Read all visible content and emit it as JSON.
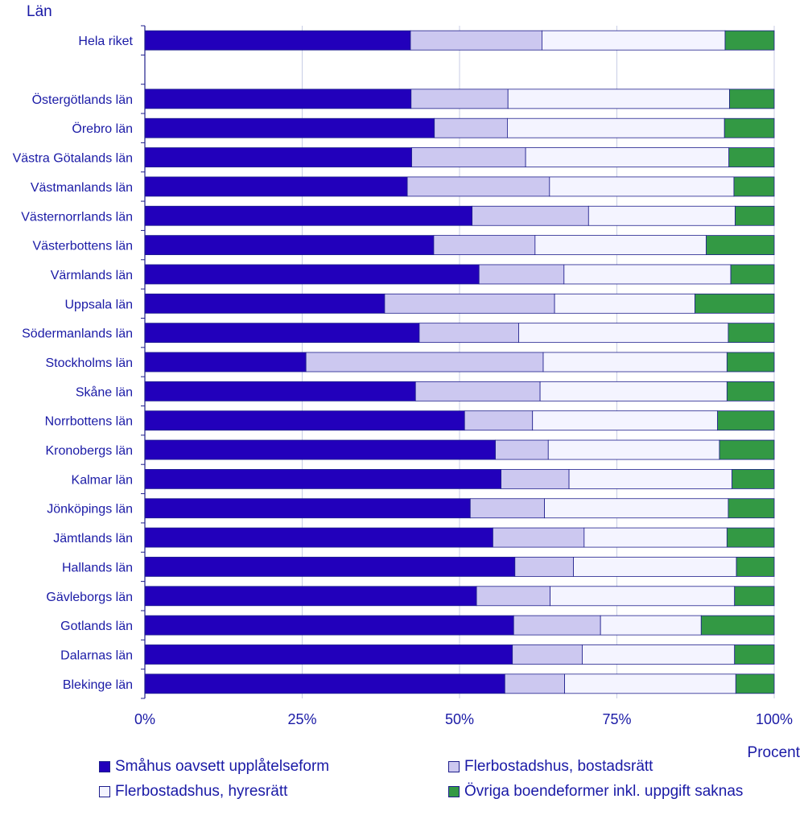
{
  "chart_data": {
    "type": "bar",
    "orientation": "horizontal",
    "stacked": true,
    "title": "Län",
    "xlabel": "Procent",
    "xlim": [
      0,
      100
    ],
    "x_ticks": [
      "0%",
      "25%",
      "50%",
      "75%",
      "100%"
    ],
    "grid": true,
    "categories": [
      "Hela riket",
      "",
      "Östergötlands län",
      "Örebro län",
      "Västra Götalands län",
      "Västmanlands län",
      "Västernorrlands län",
      "Västerbottens län",
      "Värmlands län",
      "Uppsala län",
      "Södermanlands län",
      "Stockholms län",
      "Skåne län",
      "Norrbottens län",
      "Kronobergs län",
      "Kalmar län",
      "Jönköpings län",
      "Jämtlands län",
      "Hallands län",
      "Gävleborgs län",
      "Gotlands län",
      "Dalarnas län",
      "Blekinge län"
    ],
    "series": [
      {
        "name": "Småhus oavsett upplåtelseform",
        "color": "#2200bb",
        "values": [
          42.2,
          null,
          42.3,
          46.0,
          42.4,
          41.7,
          52.0,
          45.9,
          53.1,
          38.1,
          43.6,
          25.6,
          43.0,
          50.8,
          55.7,
          56.6,
          51.7,
          55.3,
          58.8,
          52.7,
          58.6,
          58.4,
          57.2
        ]
      },
      {
        "name": "Flerbostadshus, bostadsrätt",
        "color": "#ccc8f0",
        "values": [
          20.9,
          null,
          15.4,
          11.6,
          18.1,
          22.6,
          18.5,
          16.1,
          13.5,
          27.0,
          15.8,
          37.7,
          19.8,
          10.8,
          8.4,
          10.8,
          11.8,
          14.5,
          9.3,
          11.7,
          13.8,
          11.1,
          9.5
        ]
      },
      {
        "name": "Flerbostadshus, hyresrätt",
        "color": "#f4f4ff",
        "values": [
          29.1,
          null,
          35.2,
          34.5,
          32.3,
          29.3,
          23.3,
          27.2,
          26.5,
          22.3,
          33.3,
          29.2,
          29.7,
          29.4,
          27.2,
          25.9,
          29.2,
          22.7,
          25.9,
          29.3,
          16.0,
          24.2,
          27.2
        ]
      },
      {
        "name": "Övriga boendeformer inkl. uppgift saknas",
        "color": "#339944",
        "values": [
          7.8,
          null,
          7.1,
          7.9,
          7.2,
          6.4,
          6.2,
          10.8,
          6.9,
          12.6,
          7.3,
          7.5,
          7.5,
          9.0,
          8.7,
          6.7,
          7.3,
          7.5,
          6.0,
          6.3,
          11.6,
          6.3,
          6.1
        ]
      }
    ]
  }
}
